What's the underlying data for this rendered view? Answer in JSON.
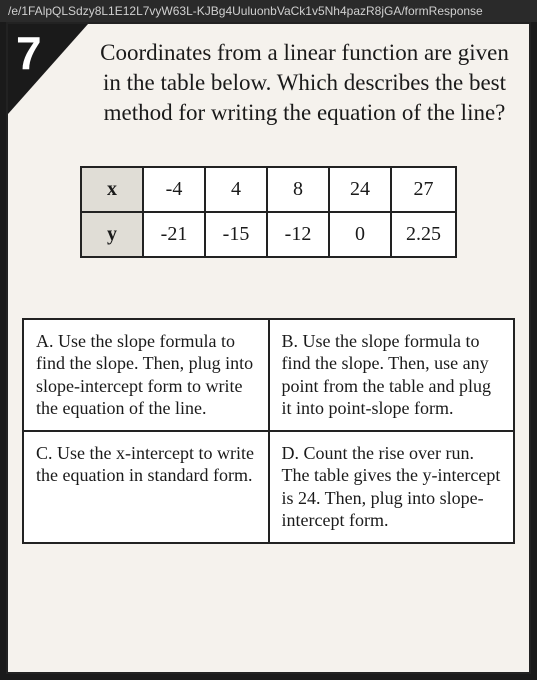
{
  "url": "/e/1FAlpQLSdzy8L1E12L7vyW63L-KJBg4UuluonbVaCk1v5Nh4pazR8jGA/formResponse",
  "question_number": "7",
  "question_text": "Coordinates from a linear function are given in the table below. Which describes the best method for writing the equation of the line?",
  "table": {
    "row_labels": [
      "x",
      "y"
    ],
    "x_values": [
      "-4",
      "4",
      "8",
      "24",
      "27"
    ],
    "y_values": [
      "-21",
      "-15",
      "-12",
      "0",
      "2.25"
    ]
  },
  "answers": {
    "A": "A. Use the slope formula to find the slope. Then, plug into slope-intercept form to write the equation of the line.",
    "B": "B. Use the slope formula to find the slope. Then, use any point from the table and plug it into point-slope form.",
    "C": "C. Use the x-intercept to write the equation in standard form.",
    "D": "D. Count the rise over run. The table gives the y-intercept is 24. Then, plug into slope-intercept form."
  }
}
